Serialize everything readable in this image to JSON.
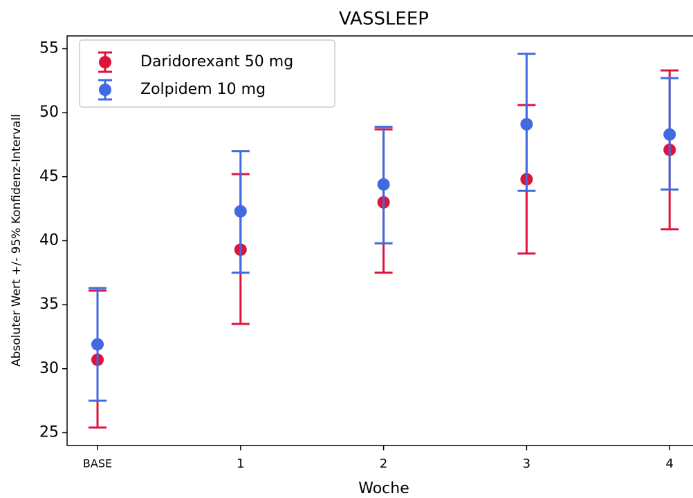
{
  "chart_data": {
    "type": "errorbar",
    "title": "VASSLEEP",
    "x_label": "Woche",
    "y_label": "Absoluter Wert +/- 95% Konfidenz-Intervall",
    "categories": [
      "BASE",
      "1",
      "2",
      "3",
      "4"
    ],
    "series": [
      {
        "name": "Daridorexant 50 mg",
        "color": "#dc143c",
        "values": [
          30.7,
          39.3,
          43.0,
          44.8,
          47.1
        ],
        "lower": [
          25.4,
          33.5,
          37.5,
          39.0,
          40.9
        ],
        "upper": [
          36.1,
          45.2,
          48.7,
          50.6,
          53.3
        ]
      },
      {
        "name": "Zolpidem 10 mg",
        "color": "#4169e1",
        "values": [
          31.9,
          42.3,
          44.4,
          49.1,
          48.3
        ],
        "lower": [
          27.5,
          37.5,
          39.8,
          43.9,
          44.0
        ],
        "upper": [
          36.3,
          47.0,
          48.9,
          54.6,
          52.7
        ]
      }
    ],
    "ylim": [
      24,
      56
    ],
    "yticks": [
      25,
      30,
      35,
      40,
      45,
      50,
      55
    ],
    "legend": "upper left",
    "grid": false
  }
}
